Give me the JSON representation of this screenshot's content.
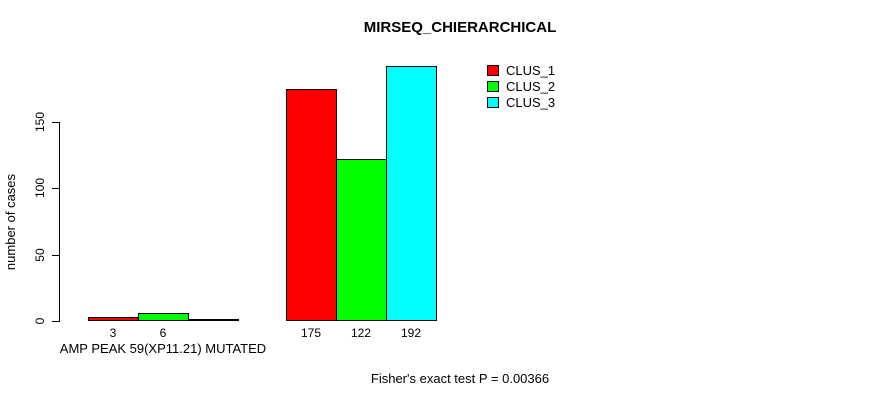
{
  "chart_data": {
    "type": "bar",
    "title": "MIRSEQ_CHIERARCHICAL",
    "ylabel": "number of cases",
    "xlabel": "",
    "ylim": [
      0,
      199
    ],
    "yticks": [
      0,
      50,
      100,
      150
    ],
    "grid": false,
    "legend_position": "top-right",
    "categories": [
      "AMP PEAK 59(XP11.21) MUTATED",
      ""
    ],
    "series": [
      {
        "name": "CLUS_1",
        "color": "#FF0000",
        "values": [
          3,
          175
        ]
      },
      {
        "name": "CLUS_2",
        "color": "#00FF00",
        "values": [
          6,
          122
        ]
      },
      {
        "name": "CLUS_3",
        "color": "#00FFFF",
        "values": [
          0,
          192
        ]
      }
    ],
    "bar_value_labels": {
      "show": true,
      "hide_zero": true
    },
    "footnote": "Fisher's exact test P = 0.00366"
  },
  "colors": {
    "background": "#FFFFFF",
    "axis": "#000000",
    "text": "#000000",
    "bar_border": "#000000"
  }
}
